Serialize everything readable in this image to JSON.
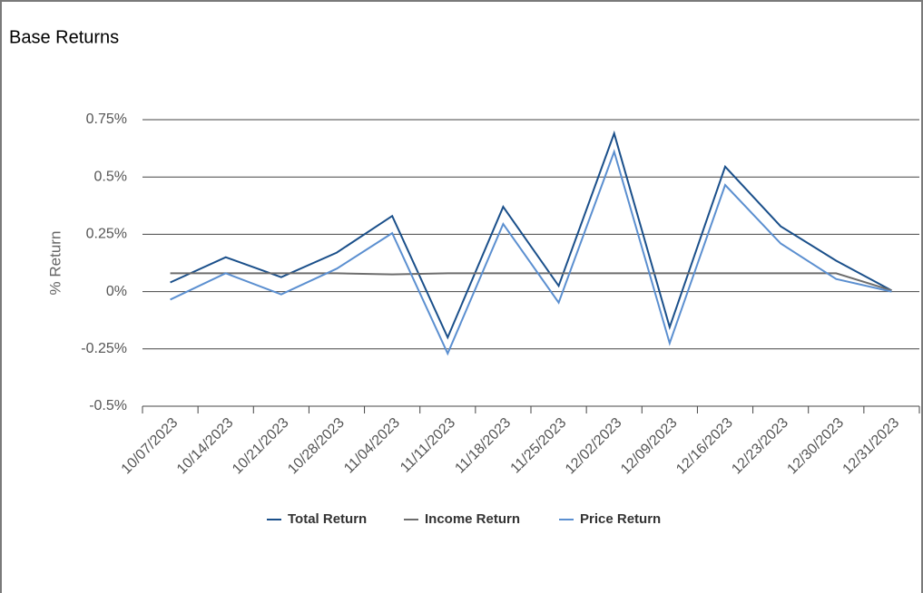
{
  "chart_data": {
    "type": "line",
    "title": "Base Returns",
    "y_label": "% Return",
    "categories": [
      "10/07/2023",
      "10/14/2023",
      "10/21/2023",
      "10/28/2023",
      "11/04/2023",
      "11/11/2023",
      "11/18/2023",
      "11/25/2023",
      "12/02/2023",
      "12/09/2023",
      "12/16/2023",
      "12/23/2023",
      "12/30/2023",
      "12/31/2023"
    ],
    "series": [
      {
        "name": "Total Return",
        "color": "#1a4f8a",
        "values": [
          0.04,
          0.15,
          0.063,
          0.17,
          0.33,
          -0.2,
          0.37,
          0.025,
          0.69,
          -0.155,
          0.545,
          0.285,
          0.135,
          0.005
        ]
      },
      {
        "name": "Income Return",
        "color": "#6d6d6d",
        "values": [
          0.08,
          0.08,
          0.08,
          0.08,
          0.075,
          0.08,
          0.08,
          0.08,
          0.08,
          0.08,
          0.08,
          0.08,
          0.08,
          0.005
        ]
      },
      {
        "name": "Price Return",
        "color": "#5b8fd0",
        "values": [
          -0.035,
          0.08,
          -0.012,
          0.1,
          0.255,
          -0.27,
          0.295,
          -0.048,
          0.61,
          -0.225,
          0.465,
          0.21,
          0.055,
          0
        ]
      }
    ],
    "ylim": [
      -0.5,
      0.75
    ],
    "yticks": [
      {
        "value": -0.5,
        "label": "-0.5%"
      },
      {
        "value": -0.25,
        "label": "-0.25%"
      },
      {
        "value": 0,
        "label": "0%"
      },
      {
        "value": 0.25,
        "label": "0.25%"
      },
      {
        "value": 0.5,
        "label": "0.5%"
      },
      {
        "value": 0.75,
        "label": "0.75%"
      }
    ],
    "grid": true,
    "legend": "bottom"
  }
}
